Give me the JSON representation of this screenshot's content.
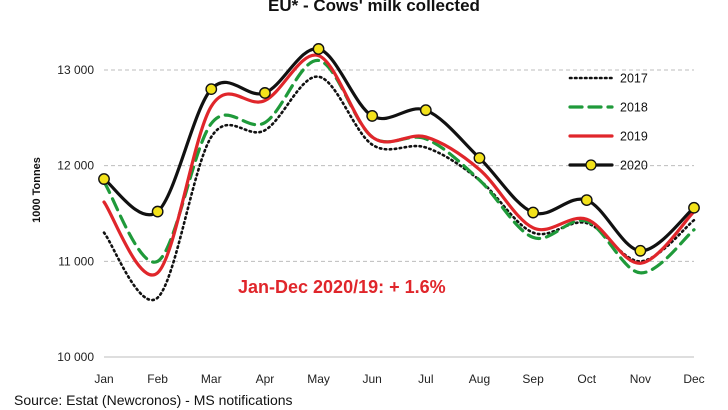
{
  "chart_data": {
    "type": "line",
    "title": "EU* - Cows' milk collected",
    "ylabel": "1000 Tonnes",
    "xlabel": "",
    "categories": [
      "Jan",
      "Feb",
      "Mar",
      "Apr",
      "May",
      "Jun",
      "Jul",
      "Aug",
      "Sep",
      "Oct",
      "Nov",
      "Dec"
    ],
    "ylim": [
      10000,
      13000
    ],
    "yticks": [
      10000,
      11000,
      12000,
      13000
    ],
    "ytick_labels": [
      "10 000",
      "11 000",
      "12 000",
      "13 000"
    ],
    "grid": "horizontal dashed",
    "legend_position": "right",
    "series": [
      {
        "name": "2017",
        "values": [
          11300,
          10620,
          12300,
          12370,
          12930,
          12220,
          12190,
          11850,
          11300,
          11400,
          11000,
          11430
        ],
        "color": "#111111",
        "style": "dotted",
        "marker": "none"
      },
      {
        "name": "2018",
        "values": [
          11830,
          11000,
          12440,
          12450,
          13100,
          12300,
          12280,
          11850,
          11250,
          11420,
          10880,
          11330
        ],
        "color": "#1f9a3a",
        "style": "dashed",
        "marker": "none"
      },
      {
        "name": "2019",
        "values": [
          11620,
          10880,
          12620,
          12680,
          13150,
          12300,
          12300,
          11960,
          11350,
          11440,
          10980,
          11520
        ],
        "color": "#e0262b",
        "style": "solid",
        "marker": "none"
      },
      {
        "name": "2020",
        "values": [
          11860,
          11520,
          12800,
          12760,
          13220,
          12520,
          12580,
          12080,
          11510,
          11640,
          11110,
          11560
        ],
        "color": "#111111",
        "style": "solid",
        "marker": "circle",
        "marker_color": "#f3e21b"
      }
    ],
    "annotations": [
      {
        "text": "Jan-Dec 2020/19: + 1.6%",
        "color": "#e0262b"
      }
    ]
  },
  "source": "Source: Estat (Newcronos) - MS notifications"
}
